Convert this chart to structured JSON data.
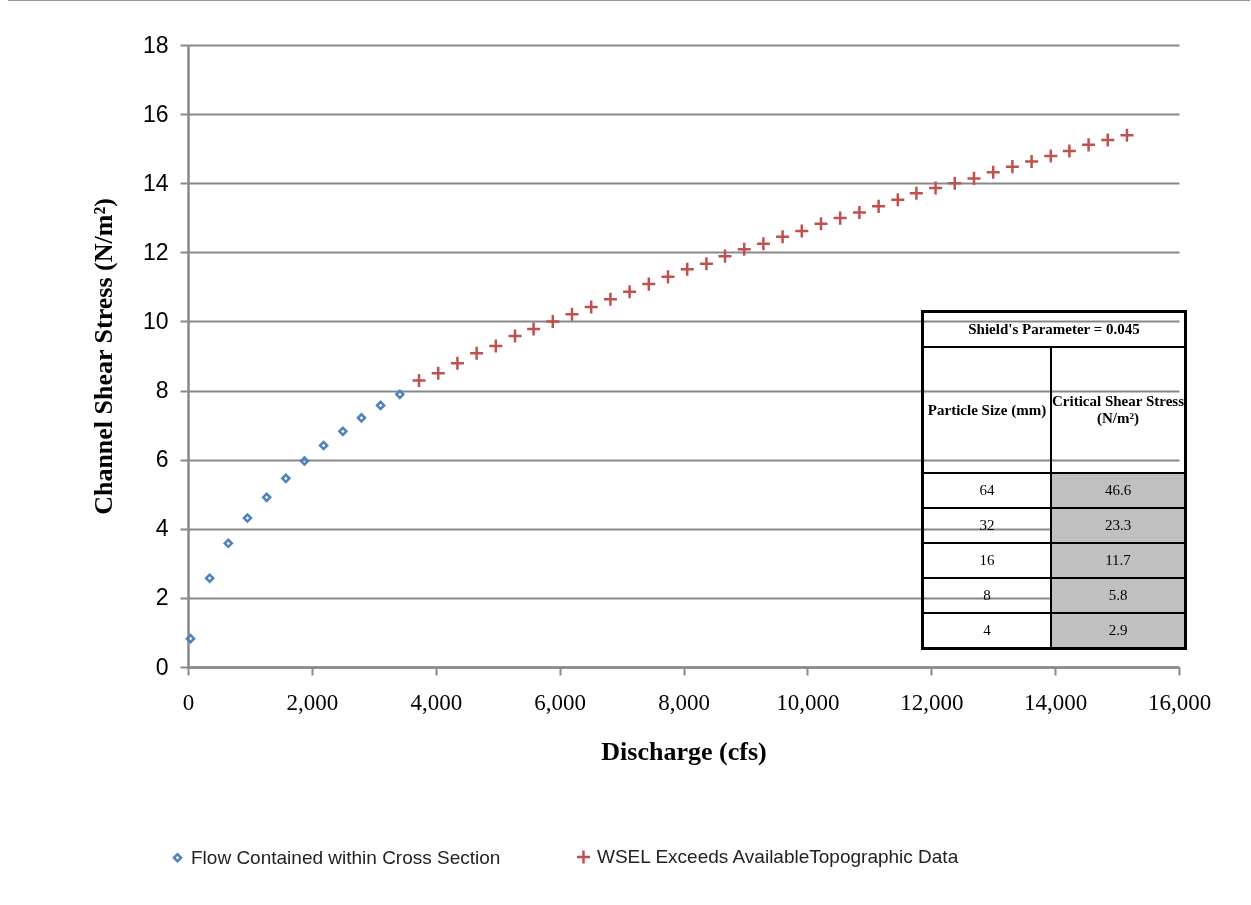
{
  "chart_data": [
    {
      "type": "scatter",
      "xlabel": "Discharge (cfs)",
      "ylabel": "Channel Shear Stress (N/m²)",
      "xlim": [
        0,
        16000
      ],
      "xticks": [
        {
          "value": 0,
          "label": "0"
        },
        {
          "value": 2000,
          "label": "2,000"
        },
        {
          "value": 4000,
          "label": "4,000"
        },
        {
          "value": 6000,
          "label": "6,000"
        },
        {
          "value": 8000,
          "label": "8,000"
        },
        {
          "value": 10000,
          "label": "10,000"
        },
        {
          "value": 12000,
          "label": "12,000"
        },
        {
          "value": 14000,
          "label": "14,000"
        },
        {
          "value": 16000,
          "label": "16,000"
        }
      ],
      "ylim": [
        0,
        18
      ],
      "yticks": [
        0,
        2,
        4,
        6,
        8,
        10,
        12,
        14,
        16,
        18
      ],
      "grid": "y",
      "legend": "bottom",
      "series": [
        {
          "name": "Flow Contained within Cross Section",
          "color": "#4f81bd",
          "marker": "diamond",
          "x": [
            40,
            350,
            650,
            960,
            1270,
            1580,
            1880,
            2190,
            2500,
            2800,
            3110,
            3420
          ],
          "values": [
            0.82,
            2.57,
            3.58,
            4.31,
            4.91,
            5.46,
            5.96,
            6.41,
            6.82,
            7.21,
            7.57,
            7.89
          ]
        },
        {
          "name": "WSEL Exceeds AvailableTopographic Data",
          "color": "#c0504d",
          "marker": "cross",
          "x": [
            3730,
            4040,
            4350,
            4660,
            4970,
            5280,
            5580,
            5890,
            6200,
            6510,
            6820,
            7130,
            7440,
            7750,
            8060,
            8370,
            8670,
            8980,
            9290,
            9600,
            9910,
            10220,
            10530,
            10840,
            11150,
            11460,
            11760,
            12070,
            12380,
            12690,
            13000,
            13310,
            13620,
            13930,
            14230,
            14540,
            14850,
            15160
          ],
          "values": [
            8.29,
            8.5,
            8.79,
            9.08,
            9.29,
            9.58,
            9.78,
            10.0,
            10.21,
            10.42,
            10.64,
            10.86,
            11.08,
            11.29,
            11.51,
            11.67,
            11.89,
            12.09,
            12.25,
            12.45,
            12.62,
            12.83,
            12.99,
            13.15,
            13.33,
            13.52,
            13.71,
            13.86,
            14.0,
            14.14,
            14.32,
            14.48,
            14.63,
            14.79,
            14.93,
            15.11,
            15.25,
            15.39
          ]
        }
      ]
    },
    {
      "type": "other",
      "title": "Shield's Parameter = 0.045",
      "xlabel": "Particle Size (mm)",
      "ylabel": "Critical Shear Stress (N/m²)",
      "categories": [
        "64",
        "32",
        "16",
        "8",
        "4"
      ],
      "values": [
        46.6,
        23.3,
        11.7,
        5.8,
        2.9
      ],
      "color": "#c0c0c0",
      "data_labels": true
    }
  ]
}
